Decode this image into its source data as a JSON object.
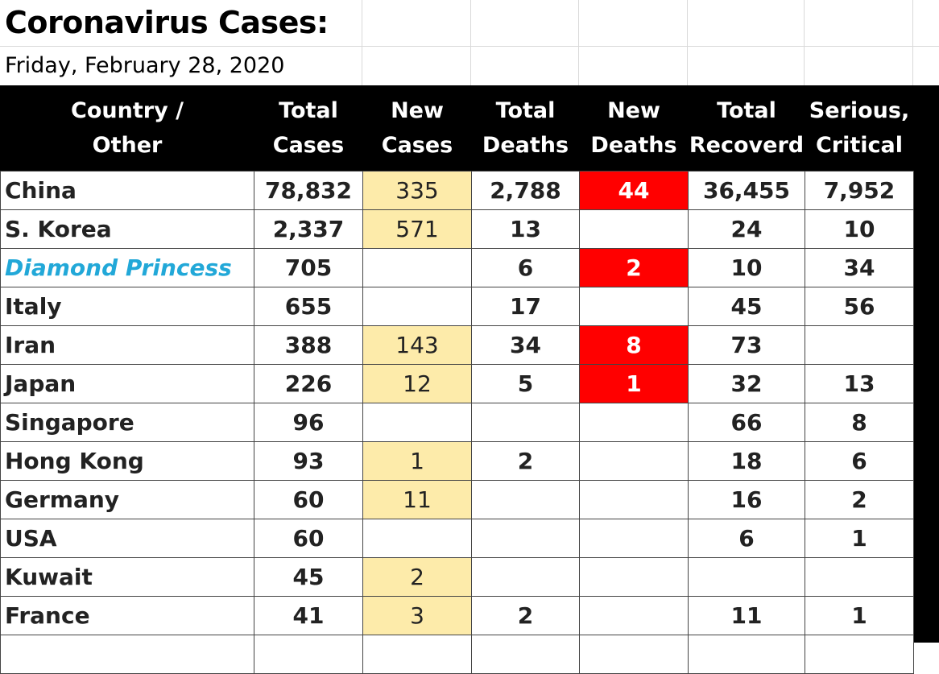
{
  "title": "Coronavirus Cases:",
  "date": "Friday, February 28, 2020",
  "headers": [
    "Country /\nOther",
    "Total\nCases",
    "New\nCases",
    "Total\nDeaths",
    "New\nDeaths",
    "Total\nRecoverd",
    "Serious,\nCritical"
  ],
  "colors": {
    "new_cases_bg": "#fdebaa",
    "new_deaths_bg": "#ff0000",
    "highlight_country": "#22a8d8",
    "header_bg": "#000000"
  },
  "rows": [
    {
      "country": "China",
      "total_cases": "78,832",
      "new_cases": "335",
      "total_deaths": "2,788",
      "new_deaths": "44",
      "total_recovered": "36,455",
      "serious_critical": "7,952"
    },
    {
      "country": "S. Korea",
      "total_cases": "2,337",
      "new_cases": "571",
      "total_deaths": "13",
      "new_deaths": "",
      "total_recovered": "24",
      "serious_critical": "10"
    },
    {
      "country": "Diamond Princess",
      "highlight": true,
      "total_cases": "705",
      "new_cases": "",
      "total_deaths": "6",
      "new_deaths": "2",
      "total_recovered": "10",
      "serious_critical": "34"
    },
    {
      "country": "Italy",
      "total_cases": "655",
      "new_cases": "",
      "total_deaths": "17",
      "new_deaths": "",
      "total_recovered": "45",
      "serious_critical": "56"
    },
    {
      "country": "Iran",
      "total_cases": "388",
      "new_cases": "143",
      "total_deaths": "34",
      "new_deaths": "8",
      "total_recovered": "73",
      "serious_critical": ""
    },
    {
      "country": "Japan",
      "total_cases": "226",
      "new_cases": "12",
      "total_deaths": "5",
      "new_deaths": "1",
      "total_recovered": "32",
      "serious_critical": "13"
    },
    {
      "country": "Singapore",
      "total_cases": "96",
      "new_cases": "",
      "total_deaths": "",
      "new_deaths": "",
      "total_recovered": "66",
      "serious_critical": "8"
    },
    {
      "country": "Hong Kong",
      "total_cases": "93",
      "new_cases": "1",
      "total_deaths": "2",
      "new_deaths": "",
      "total_recovered": "18",
      "serious_critical": "6"
    },
    {
      "country": "Germany",
      "total_cases": "60",
      "new_cases": "11",
      "total_deaths": "",
      "new_deaths": "",
      "total_recovered": "16",
      "serious_critical": "2"
    },
    {
      "country": "USA",
      "total_cases": "60",
      "new_cases": "",
      "total_deaths": "",
      "new_deaths": "",
      "total_recovered": "6",
      "serious_critical": "1"
    },
    {
      "country": "Kuwait",
      "total_cases": "45",
      "new_cases": "2",
      "total_deaths": "",
      "new_deaths": "",
      "total_recovered": "",
      "serious_critical": ""
    },
    {
      "country": "France",
      "total_cases": "41",
      "new_cases": "3",
      "total_deaths": "2",
      "new_deaths": "",
      "total_recovered": "11",
      "serious_critical": "1"
    },
    {
      "country": "",
      "total_cases": "",
      "new_cases": "",
      "total_deaths": "",
      "new_deaths": "",
      "total_recovered": "",
      "serious_critical": ""
    }
  ]
}
